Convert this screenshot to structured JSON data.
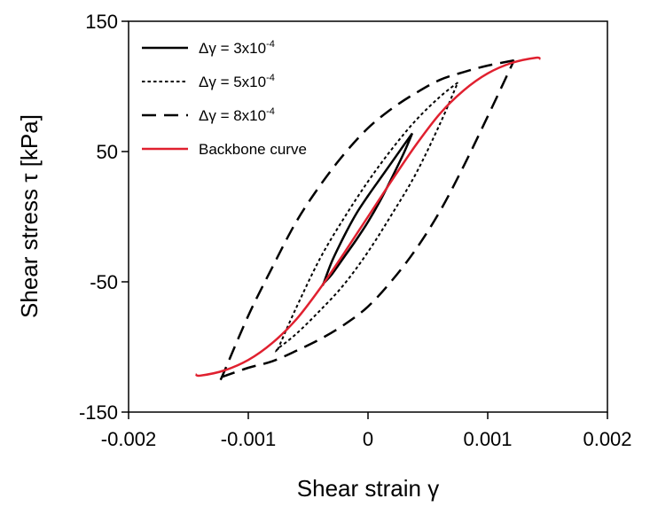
{
  "chart_data": {
    "type": "line",
    "xlabel": "Shear strain γ",
    "ylabel": "Shear stress τ [kPa]",
    "xlim": [
      -0.002,
      0.002
    ],
    "ylim": [
      -150,
      150
    ],
    "x_ticks": [
      "-0.002",
      "-0.001",
      "0",
      "0.001",
      "0.002"
    ],
    "y_ticks": [
      "150",
      "50",
      "-50",
      "-150"
    ],
    "x_tick_values": [
      -0.002,
      -0.001,
      0,
      0.001,
      0.002
    ],
    "y_tick_values": [
      150,
      50,
      -50,
      -150
    ],
    "grid": false,
    "legend_position": "top-left",
    "series": [
      {
        "name": "Δγ = 3x10-4",
        "legend": {
          "prefix": "Δγ = 3x10",
          "sup": "-4"
        },
        "style": "solid",
        "color": "#000000",
        "x": [
          0.00037,
          0.0003,
          0.0002,
          0.0001,
          0,
          -0.0001,
          -0.0002,
          -0.0003,
          -0.00037,
          -0.00037,
          -0.0003,
          -0.0002,
          -0.0001,
          0,
          0.0001,
          0.0002,
          0.0003,
          0.00037
        ],
        "y": [
          64,
          55,
          42,
          29,
          16,
          2,
          -15,
          -34,
          -51,
          -51,
          -44,
          -31,
          -18,
          -4,
          12,
          30,
          49,
          64
        ]
      },
      {
        "name": "Δγ = 5x10-4",
        "legend": {
          "prefix": "Δγ = 5x10",
          "sup": "-4"
        },
        "style": "dotted",
        "color": "#000000",
        "x": [
          0.00075,
          0.0006,
          0.0004,
          0.0002,
          0,
          -0.0002,
          -0.0004,
          -0.0006,
          -0.00075,
          -0.00075,
          -0.0006,
          -0.0004,
          -0.0002,
          0,
          0.0002,
          0.0004,
          0.0006,
          0.00075
        ],
        "y": [
          103,
          92,
          74,
          52,
          27,
          -1,
          -32,
          -70,
          -101,
          -101,
          -90,
          -72,
          -52,
          -27,
          2,
          33,
          71,
          103
        ]
      },
      {
        "name": "Δγ = 8x10-4",
        "legend": {
          "prefix": "Δγ = 8x10",
          "sup": "-4"
        },
        "style": "dashed",
        "color": "#000000",
        "x": [
          0.00122,
          0.001,
          0.0008,
          0.0006,
          0.0004,
          0.0002,
          0,
          -0.0002,
          -0.0004,
          -0.0006,
          -0.0008,
          -0.001,
          -0.00122,
          -0.00122,
          -0.001,
          -0.0008,
          -0.0006,
          -0.0004,
          -0.0002,
          0,
          0.0002,
          0.0004,
          0.0006,
          0.0008,
          0.001,
          0.00122
        ],
        "y": [
          120,
          116,
          111,
          105,
          95,
          83,
          68,
          48,
          24,
          -4,
          -39,
          -76,
          -123,
          -123,
          -116,
          -111,
          -103,
          -94,
          -83,
          -69,
          -49,
          -25,
          4,
          39,
          77,
          120
        ]
      },
      {
        "name": "Backbone curve",
        "legend": {
          "prefix": "Backbone curve",
          "sup": ""
        },
        "style": "solid",
        "color": "#e0202f",
        "x": [
          -0.00144,
          -0.0014,
          -0.0012,
          -0.001,
          -0.0008,
          -0.0006,
          -0.0004,
          -0.0002,
          0,
          0.0002,
          0.0004,
          0.0006,
          0.0008,
          0.001,
          0.0012,
          0.0014,
          0.00144
        ],
        "y": [
          -121,
          -122,
          -118,
          -110,
          -97,
          -79,
          -55,
          -28,
          0,
          28,
          55,
          79,
          97,
          110,
          118,
          122,
          121
        ]
      }
    ]
  }
}
